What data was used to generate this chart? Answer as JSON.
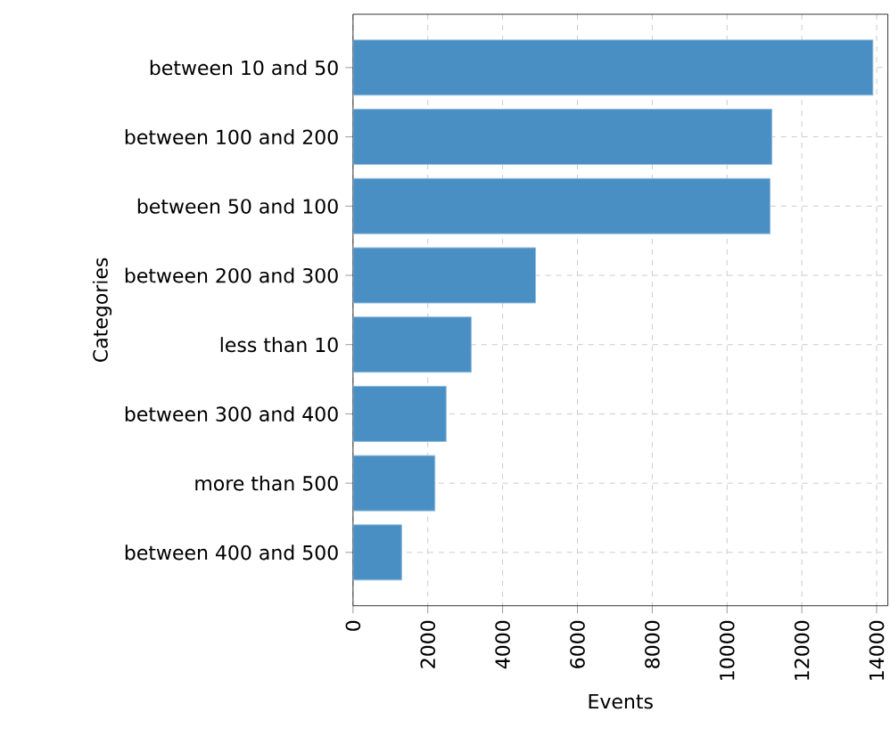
{
  "chart_data": {
    "type": "bar",
    "orientation": "horizontal",
    "xlabel": "Events",
    "ylabel": "Categories",
    "categories": [
      "between 10 and 50",
      "between 100 and 200",
      "between 50 and 100",
      "between 200 and 300",
      "less than 10",
      "between 300 and 400",
      "more than 500",
      "between 400 and 500"
    ],
    "values": [
      13900,
      11200,
      11150,
      4880,
      3160,
      2490,
      2190,
      1300
    ],
    "color": "#4a8fc4",
    "xlim": [
      0,
      14300
    ],
    "xticks": [
      0,
      2000,
      4000,
      6000,
      8000,
      10000,
      12000,
      14000
    ],
    "grid": true
  }
}
